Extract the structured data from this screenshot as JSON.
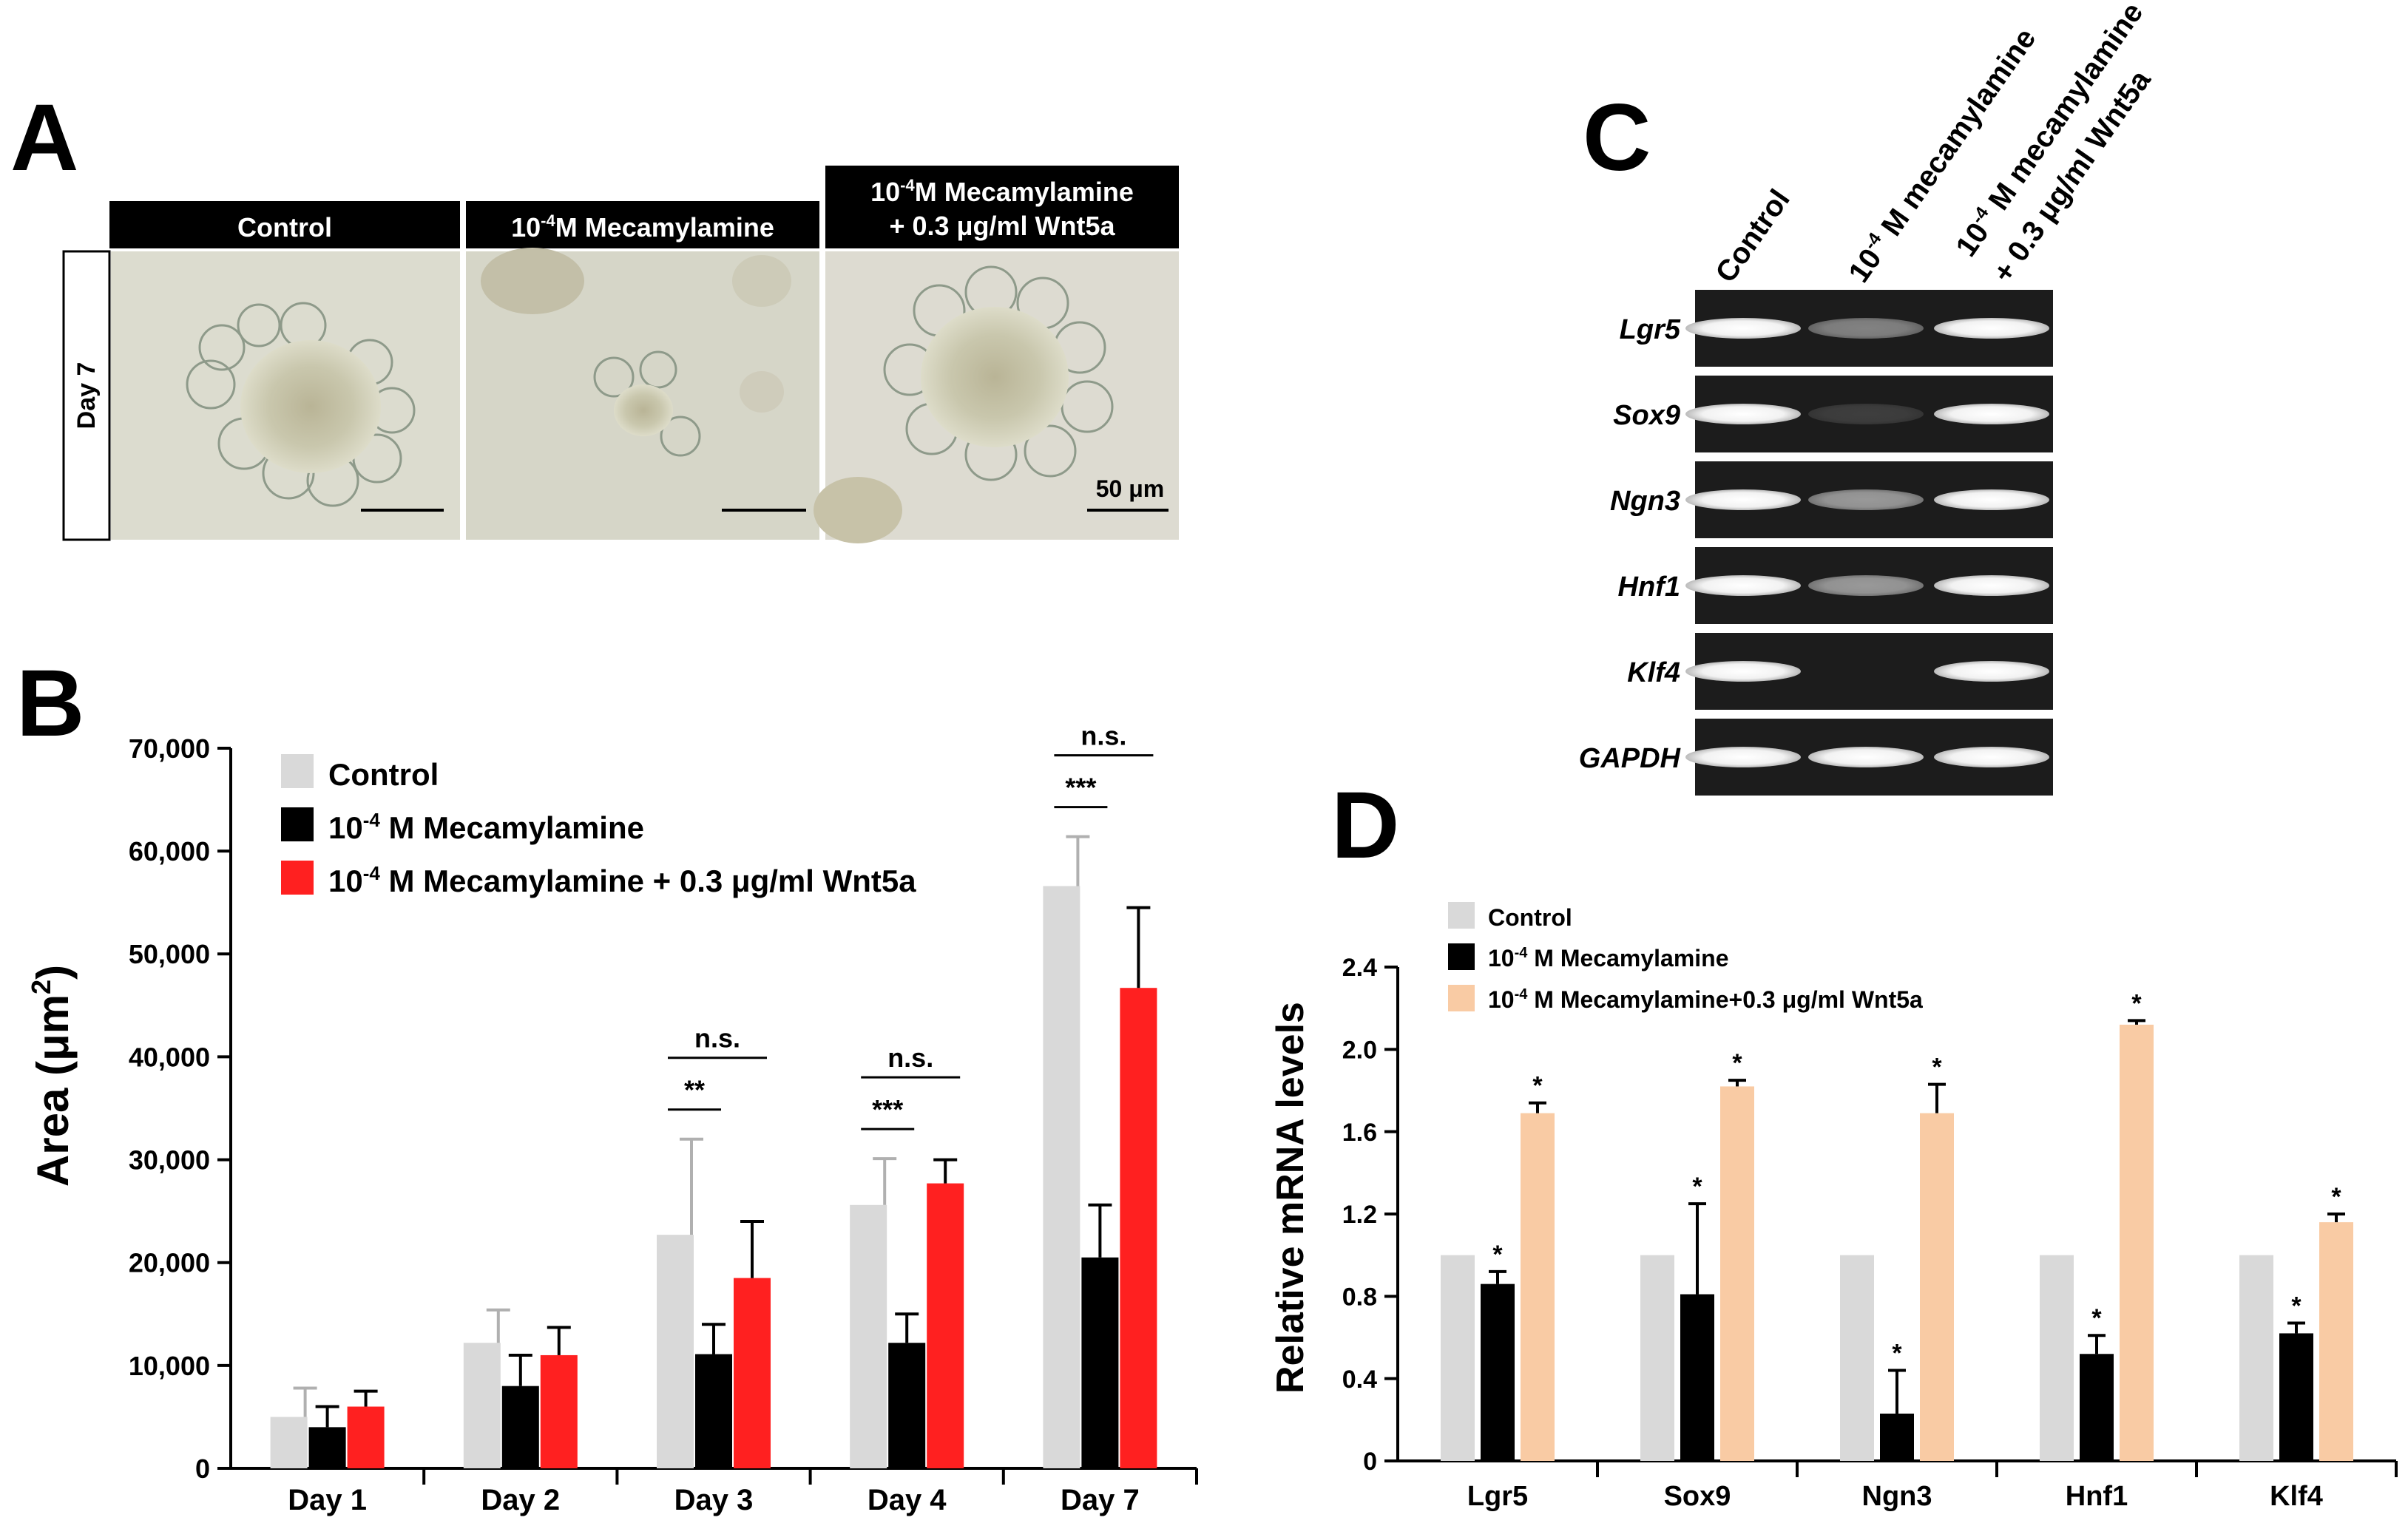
{
  "panels": {
    "a": "A",
    "b": "B",
    "c": "C",
    "d": "D"
  },
  "panel_a": {
    "headers": [
      "Control",
      "10",
      "M Mecamylamine",
      "10",
      "M Mecamylamine",
      "+ 0.3 μg/ml Wnt5a"
    ],
    "header_sup": "-4",
    "row_label": "Day 7",
    "scale_label": "50 μm"
  },
  "panel_c": {
    "lanes": [
      "Control",
      "10",
      " M mecamylamine",
      "10",
      " M mecamylamine",
      "+ 0.3 μg/ml Wnt5a"
    ],
    "lane_sup": "-4",
    "genes": [
      "Lgr5",
      "Sox9",
      "Ngn3",
      "Hnf1",
      "Klf4",
      "GAPDH"
    ],
    "band_intensity": [
      [
        1.0,
        0.45,
        1.0
      ],
      [
        1.0,
        0.15,
        1.0
      ],
      [
        1.0,
        0.55,
        1.0
      ],
      [
        1.0,
        0.55,
        1.0
      ],
      [
        1.0,
        0.0,
        1.0
      ],
      [
        1.0,
        1.0,
        1.0
      ]
    ]
  },
  "colors": {
    "control": "#d9d9d9",
    "mecamylamine": "#000000",
    "wnt5a_b": "#ff2020",
    "wnt5a_d": "#f9cba4"
  },
  "chart_data": [
    {
      "type": "bar",
      "panel": "B",
      "categories": [
        "Day 1",
        "Day 2",
        "Day 3",
        "Day 4",
        "Day 7"
      ],
      "ylabel": "Area (μm",
      "ylabel_sup": "2",
      "ylabel_end": ")",
      "ylim": [
        0,
        70000
      ],
      "yticks": [
        "0",
        "10,000",
        "20,000",
        "30,000",
        "40,000",
        "50,000",
        "60,000",
        "70,000"
      ],
      "legend_position": "top-left",
      "series": [
        {
          "name": "Control",
          "values": [
            5000,
            12200,
            22700,
            25600,
            56600
          ],
          "errors": [
            2800,
            3200,
            9300,
            4500,
            4800
          ]
        },
        {
          "name_parts": [
            "10",
            "-4",
            " M Mecamylamine"
          ],
          "values": [
            4000,
            8000,
            11100,
            12200,
            20500
          ],
          "errors": [
            2000,
            3000,
            2900,
            2800,
            5100
          ]
        },
        {
          "name_parts": [
            "10",
            "-4",
            " M Mecamylamine + 0.3 μg/ml Wnt5a"
          ],
          "values": [
            6000,
            11000,
            18500,
            27700,
            46700
          ],
          "errors": [
            1500,
            2700,
            5500,
            2300,
            7800
          ]
        }
      ],
      "annotations": [
        {
          "day": "Day 3",
          "pair": "control-mecamylamine",
          "text": "**"
        },
        {
          "day": "Day 3",
          "pair": "control-wnt5a",
          "text": "n.s."
        },
        {
          "day": "Day 4",
          "pair": "control-mecamylamine",
          "text": "***"
        },
        {
          "day": "Day 4",
          "pair": "control-wnt5a",
          "text": "n.s."
        },
        {
          "day": "Day 7",
          "pair": "control-mecamylamine",
          "text": "***"
        },
        {
          "day": "Day 7",
          "pair": "control-wnt5a",
          "text": "n.s."
        }
      ]
    },
    {
      "type": "bar",
      "panel": "D",
      "categories": [
        "Lgr5",
        "Sox9",
        "Ngn3",
        "Hnf1",
        "Klf4"
      ],
      "ylabel": "Relative mRNA levels",
      "ylim": [
        0,
        2.4
      ],
      "yticks": [
        "0",
        "0.4",
        "0.8",
        "1.2",
        "1.6",
        "2.0",
        "2.4"
      ],
      "legend_position": "top-left",
      "series": [
        {
          "name": "Control",
          "values": [
            1.0,
            1.0,
            1.0,
            1.0,
            1.0
          ],
          "errors": [
            0,
            0,
            0,
            0,
            0
          ]
        },
        {
          "name_parts": [
            "10",
            "-4",
            " M Mecamylamine"
          ],
          "values": [
            0.86,
            0.81,
            0.23,
            0.52,
            0.62
          ],
          "errors": [
            0.06,
            0.44,
            0.21,
            0.09,
            0.05
          ]
        },
        {
          "name_parts": [
            "10",
            "-4",
            " M Mecamylamine+0.3 μg/ml Wnt5a"
          ],
          "values": [
            1.69,
            1.82,
            1.69,
            2.12,
            1.16
          ],
          "errors": [
            0.05,
            0.03,
            0.14,
            0.02,
            0.04
          ]
        }
      ],
      "significance_marker": "*"
    }
  ]
}
